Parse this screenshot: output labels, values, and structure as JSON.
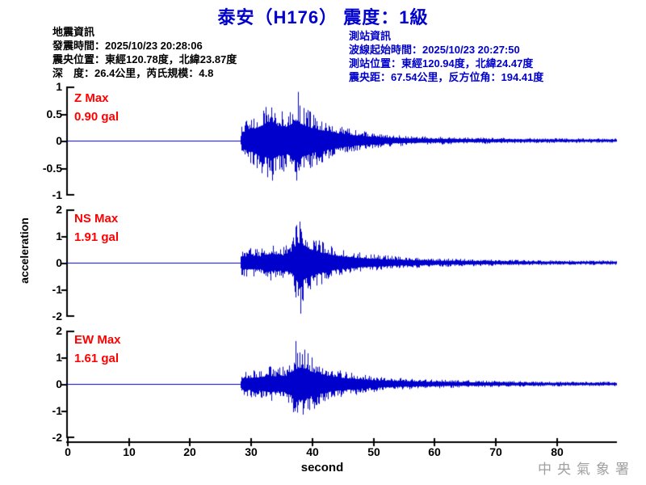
{
  "title": "泰安（H176） 震度：1級",
  "info_left": {
    "heading": "地震資訊",
    "lines": [
      "發震時間：2025/10/23 20:28:06",
      "震央位置：東經120.78度，北緯23.87度",
      "深　度：26.4公里，芮氏規模：4.8"
    ]
  },
  "info_right": {
    "heading": "測站資訊",
    "lines": [
      "波線起始時間：2025/10/23 20:27:50",
      "測站位置：東經120.94度，北緯24.47度",
      "震央距：67.54公里，反方位角：194.41度"
    ]
  },
  "watermark": "中央氣象署",
  "colors": {
    "title_blue": "#0000cc",
    "info_blue": "#0000cc",
    "label_red": "#ff0000",
    "trace_blue": "#0000cc",
    "axis_black": "#000000",
    "watermark_gray": "#a0a0a0",
    "background": "#ffffff"
  },
  "chart_data": {
    "type": "line",
    "title": "泰安（H176） 震度：1級",
    "xlabel": "second",
    "ylabel": "acceleration",
    "x_ticks": [
      0,
      10,
      20,
      30,
      40,
      50,
      60,
      70,
      80
    ],
    "x_range": [
      0,
      89.8
    ],
    "grid": false,
    "legend": "none",
    "traces": [
      {
        "name": "Z",
        "label": "Z Max",
        "max_label": "0.90 gal",
        "max_gal": 0.9,
        "unit": "gal",
        "onset_s": 28.4,
        "peak_time_s": 37.8,
        "peak_sign": 1,
        "ylim": [
          -1,
          1
        ],
        "yticks": [
          1,
          0.5,
          0,
          -0.5,
          -1
        ],
        "envelope": [
          [
            0,
            0
          ],
          [
            28.3,
            0
          ],
          [
            28.5,
            0.32
          ],
          [
            29.5,
            0.42
          ],
          [
            31,
            0.52
          ],
          [
            32.5,
            0.68
          ],
          [
            33.5,
            0.78
          ],
          [
            34.5,
            0.6
          ],
          [
            36,
            0.55
          ],
          [
            37.3,
            0.8
          ],
          [
            38.2,
            0.68
          ],
          [
            39.5,
            0.55
          ],
          [
            41,
            0.45
          ],
          [
            43,
            0.36
          ],
          [
            45,
            0.27
          ],
          [
            47,
            0.21
          ],
          [
            50,
            0.15
          ],
          [
            53,
            0.11
          ],
          [
            56,
            0.09
          ],
          [
            60,
            0.075
          ],
          [
            65,
            0.06
          ],
          [
            70,
            0.055
          ],
          [
            75,
            0.05
          ],
          [
            80,
            0.045
          ],
          [
            89.8,
            0.04
          ]
        ]
      },
      {
        "name": "NS",
        "label": "NS Max",
        "max_label": "1.91 gal",
        "max_gal": 1.91,
        "unit": "gal",
        "onset_s": 28.4,
        "peak_time_s": 38.2,
        "peak_sign": -1,
        "ylim": [
          -2,
          2
        ],
        "yticks": [
          2,
          1,
          0,
          -1,
          -2
        ],
        "envelope": [
          [
            0,
            0
          ],
          [
            28.3,
            0
          ],
          [
            28.5,
            0.5
          ],
          [
            30,
            0.55
          ],
          [
            31.5,
            0.5
          ],
          [
            33,
            0.72
          ],
          [
            34,
            0.65
          ],
          [
            35.5,
            0.6
          ],
          [
            36.8,
            0.9
          ],
          [
            37.5,
            1.45
          ],
          [
            38.3,
            1.6
          ],
          [
            39,
            1.3
          ],
          [
            40,
            1.05
          ],
          [
            41,
            0.9
          ],
          [
            42.5,
            0.72
          ],
          [
            44,
            0.58
          ],
          [
            46,
            0.46
          ],
          [
            48,
            0.38
          ],
          [
            50,
            0.32
          ],
          [
            53,
            0.26
          ],
          [
            56,
            0.21
          ],
          [
            60,
            0.17
          ],
          [
            65,
            0.14
          ],
          [
            70,
            0.12
          ],
          [
            75,
            0.1
          ],
          [
            80,
            0.09
          ],
          [
            89.8,
            0.08
          ]
        ]
      },
      {
        "name": "EW",
        "label": "EW Max",
        "max_label": "1.61 gal",
        "max_gal": 1.61,
        "unit": "gal",
        "onset_s": 28.4,
        "peak_time_s": 37.4,
        "peak_sign": 1,
        "ylim": [
          -2,
          2
        ],
        "yticks": [
          2,
          1,
          0,
          -1,
          -2
        ],
        "envelope": [
          [
            0,
            0
          ],
          [
            28.3,
            0
          ],
          [
            28.5,
            0.45
          ],
          [
            30,
            0.5
          ],
          [
            31.5,
            0.55
          ],
          [
            33,
            0.68
          ],
          [
            34.5,
            0.62
          ],
          [
            36,
            0.7
          ],
          [
            37.2,
            1.2
          ],
          [
            38,
            1.35
          ],
          [
            38.8,
            1.3
          ],
          [
            39.8,
            1.05
          ],
          [
            41,
            0.85
          ],
          [
            42.5,
            0.68
          ],
          [
            44,
            0.56
          ],
          [
            46,
            0.46
          ],
          [
            48,
            0.38
          ],
          [
            50,
            0.31
          ],
          [
            53,
            0.25
          ],
          [
            56,
            0.21
          ],
          [
            60,
            0.17
          ],
          [
            65,
            0.14
          ],
          [
            70,
            0.12
          ],
          [
            75,
            0.1
          ],
          [
            80,
            0.09
          ],
          [
            89.8,
            0.08
          ]
        ]
      }
    ]
  }
}
